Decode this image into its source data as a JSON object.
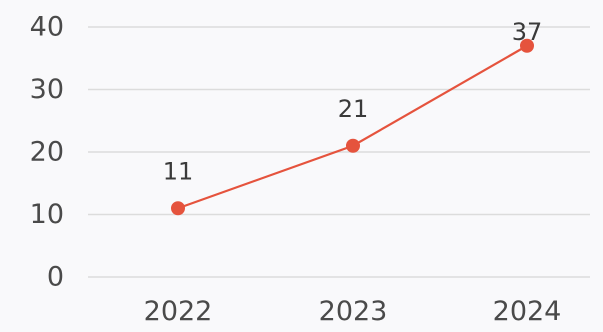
{
  "chart_data": {
    "type": "line",
    "title": "",
    "xlabel": "",
    "ylabel": "",
    "categories": [
      "2022",
      "2023",
      "2024"
    ],
    "series": [
      {
        "values": [
          11,
          21,
          37
        ]
      }
    ],
    "data_labels": [
      "11",
      "21",
      "37"
    ],
    "y_ticks": [
      "0",
      "10",
      "20",
      "30",
      "40"
    ],
    "ylim": [
      0,
      40
    ],
    "grid": true,
    "legend": "none",
    "colors": {
      "series": "#e5533d",
      "grid": "#dcdcdc",
      "text": "#4a4a4a",
      "background": "#f9f9fb"
    }
  }
}
